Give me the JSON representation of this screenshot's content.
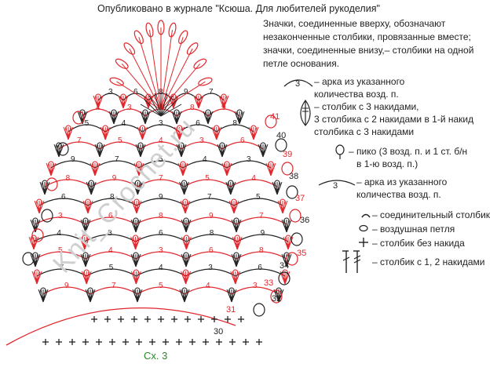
{
  "header": "Опубликовано в журнале \"Ксюша. Для любителей рукоделия\"",
  "note": [
    "Значки, соединенные вверху, обозначают",
    "незаконченные столбики, провязанные вместе;",
    "значки, соединенные внизу,– столбики на одной",
    "петле основания."
  ],
  "legend": {
    "arch_num": "3",
    "arch": [
      "– арка из указанного",
      "количества возд. п."
    ],
    "cluster": [
      "– столбик с 3 накидами,",
      "3 столбика с 2 накидами в 1-й накид",
      "столбика с 3 накидами"
    ],
    "picot": [
      "– пико (3 возд. п. и 1 ст. б/н",
      "в 1-ю возд. п.)"
    ],
    "arch2_num": "3",
    "arch2": [
      "– арка из указанного",
      "количества возд. п."
    ],
    "slip": "– соединительный столбик",
    "chain": "– воздушная петля",
    "sc": "– столбик без накида",
    "dc": "– столбик с 1, 2 накидами"
  },
  "scheme_label": "Сх. 3",
  "watermark": "Knit_Crochet.ru",
  "colors": {
    "red": "#e0262c",
    "black": "#222222",
    "green": "#2a8a2a"
  },
  "chart_data": {
    "type": "table",
    "row_numbers": [
      "30",
      "31",
      "32",
      "33",
      "34",
      "35",
      "36",
      "37",
      "38",
      "39",
      "40",
      "41"
    ],
    "arch_labels": [
      "9",
      "7",
      "5",
      "4",
      "3",
      "6",
      "8"
    ]
  }
}
